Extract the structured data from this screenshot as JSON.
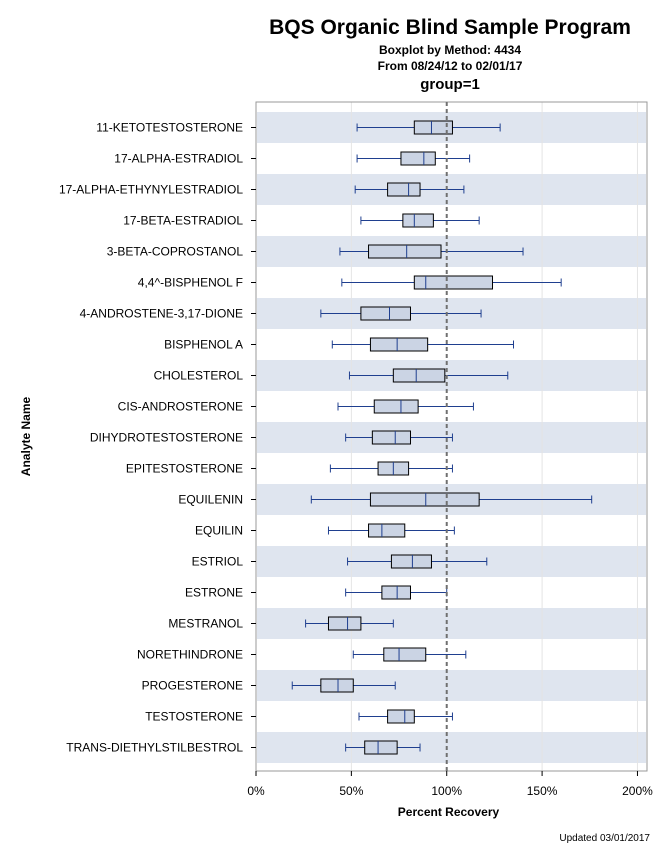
{
  "chart_data": {
    "type": "boxplot",
    "title": "BQS Organic Blind Sample Program",
    "subtitle1": "Boxplot by Method: 4434",
    "subtitle2": "From 08/24/12 to 02/01/17",
    "group_label": "group=1",
    "xlabel": "Percent Recovery",
    "ylabel": "Analyte Name",
    "xlim": [
      0,
      205
    ],
    "xticks": [
      0,
      50,
      100,
      150,
      200
    ],
    "xtick_labels": [
      "0%",
      "50%",
      "100%",
      "150%",
      "200%"
    ],
    "reference_line": 100,
    "series": [
      {
        "name": "11-KETOTESTOSTERONE",
        "min": 53,
        "q1": 83,
        "median": 92,
        "q3": 103,
        "max": 128
      },
      {
        "name": "17-ALPHA-ESTRADIOL",
        "min": 53,
        "q1": 76,
        "median": 88,
        "q3": 94,
        "max": 112
      },
      {
        "name": "17-ALPHA-ETHYNYLESTRADIOL",
        "min": 52,
        "q1": 69,
        "median": 80,
        "q3": 86,
        "max": 109
      },
      {
        "name": "17-BETA-ESTRADIOL",
        "min": 55,
        "q1": 77,
        "median": 83,
        "q3": 93,
        "max": 117
      },
      {
        "name": "3-BETA-COPROSTANOL",
        "min": 44,
        "q1": 59,
        "median": 79,
        "q3": 97,
        "max": 140
      },
      {
        "name": "4,4^-BISPHENOL F",
        "min": 45,
        "q1": 83,
        "median": 89,
        "q3": 124,
        "max": 160
      },
      {
        "name": "4-ANDROSTENE-3,17-DIONE",
        "min": 34,
        "q1": 55,
        "median": 70,
        "q3": 81,
        "max": 118
      },
      {
        "name": "BISPHENOL A",
        "min": 40,
        "q1": 60,
        "median": 74,
        "q3": 90,
        "max": 135
      },
      {
        "name": "CHOLESTEROL",
        "min": 49,
        "q1": 72,
        "median": 84,
        "q3": 99,
        "max": 132
      },
      {
        "name": "CIS-ANDROSTERONE",
        "min": 43,
        "q1": 62,
        "median": 76,
        "q3": 85,
        "max": 114
      },
      {
        "name": "DIHYDROTESTOSTERONE",
        "min": 47,
        "q1": 61,
        "median": 73,
        "q3": 81,
        "max": 103
      },
      {
        "name": "EPITESTOSTERONE",
        "min": 39,
        "q1": 64,
        "median": 72,
        "q3": 80,
        "max": 103
      },
      {
        "name": "EQUILENIN",
        "min": 29,
        "q1": 60,
        "median": 89,
        "q3": 117,
        "max": 176
      },
      {
        "name": "EQUILIN",
        "min": 38,
        "q1": 59,
        "median": 66,
        "q3": 78,
        "max": 104
      },
      {
        "name": "ESTRIOL",
        "min": 48,
        "q1": 71,
        "median": 82,
        "q3": 92,
        "max": 121
      },
      {
        "name": "ESTRONE",
        "min": 47,
        "q1": 66,
        "median": 74,
        "q3": 81,
        "max": 100
      },
      {
        "name": "MESTRANOL",
        "min": 26,
        "q1": 38,
        "median": 48,
        "q3": 55,
        "max": 72
      },
      {
        "name": "NORETHINDRONE",
        "min": 51,
        "q1": 67,
        "median": 75,
        "q3": 89,
        "max": 110
      },
      {
        "name": "PROGESTERONE",
        "min": 19,
        "q1": 34,
        "median": 43,
        "q3": 51,
        "max": 73
      },
      {
        "name": "TESTOSTERONE",
        "min": 54,
        "q1": 69,
        "median": 78,
        "q3": 83,
        "max": 103
      },
      {
        "name": "TRANS-DIETHYLSTILBESTROL",
        "min": 47,
        "q1": 57,
        "median": 64,
        "q3": 74,
        "max": 86
      }
    ]
  },
  "footer": "Updated 03/01/2017",
  "colors": {
    "band": "#dfe5ef",
    "box_fill": "#cbd4e4",
    "box_stroke": "#000000",
    "whisker": "#1f3f8f",
    "refline": "#707070",
    "grid": "#e4e4e4"
  }
}
